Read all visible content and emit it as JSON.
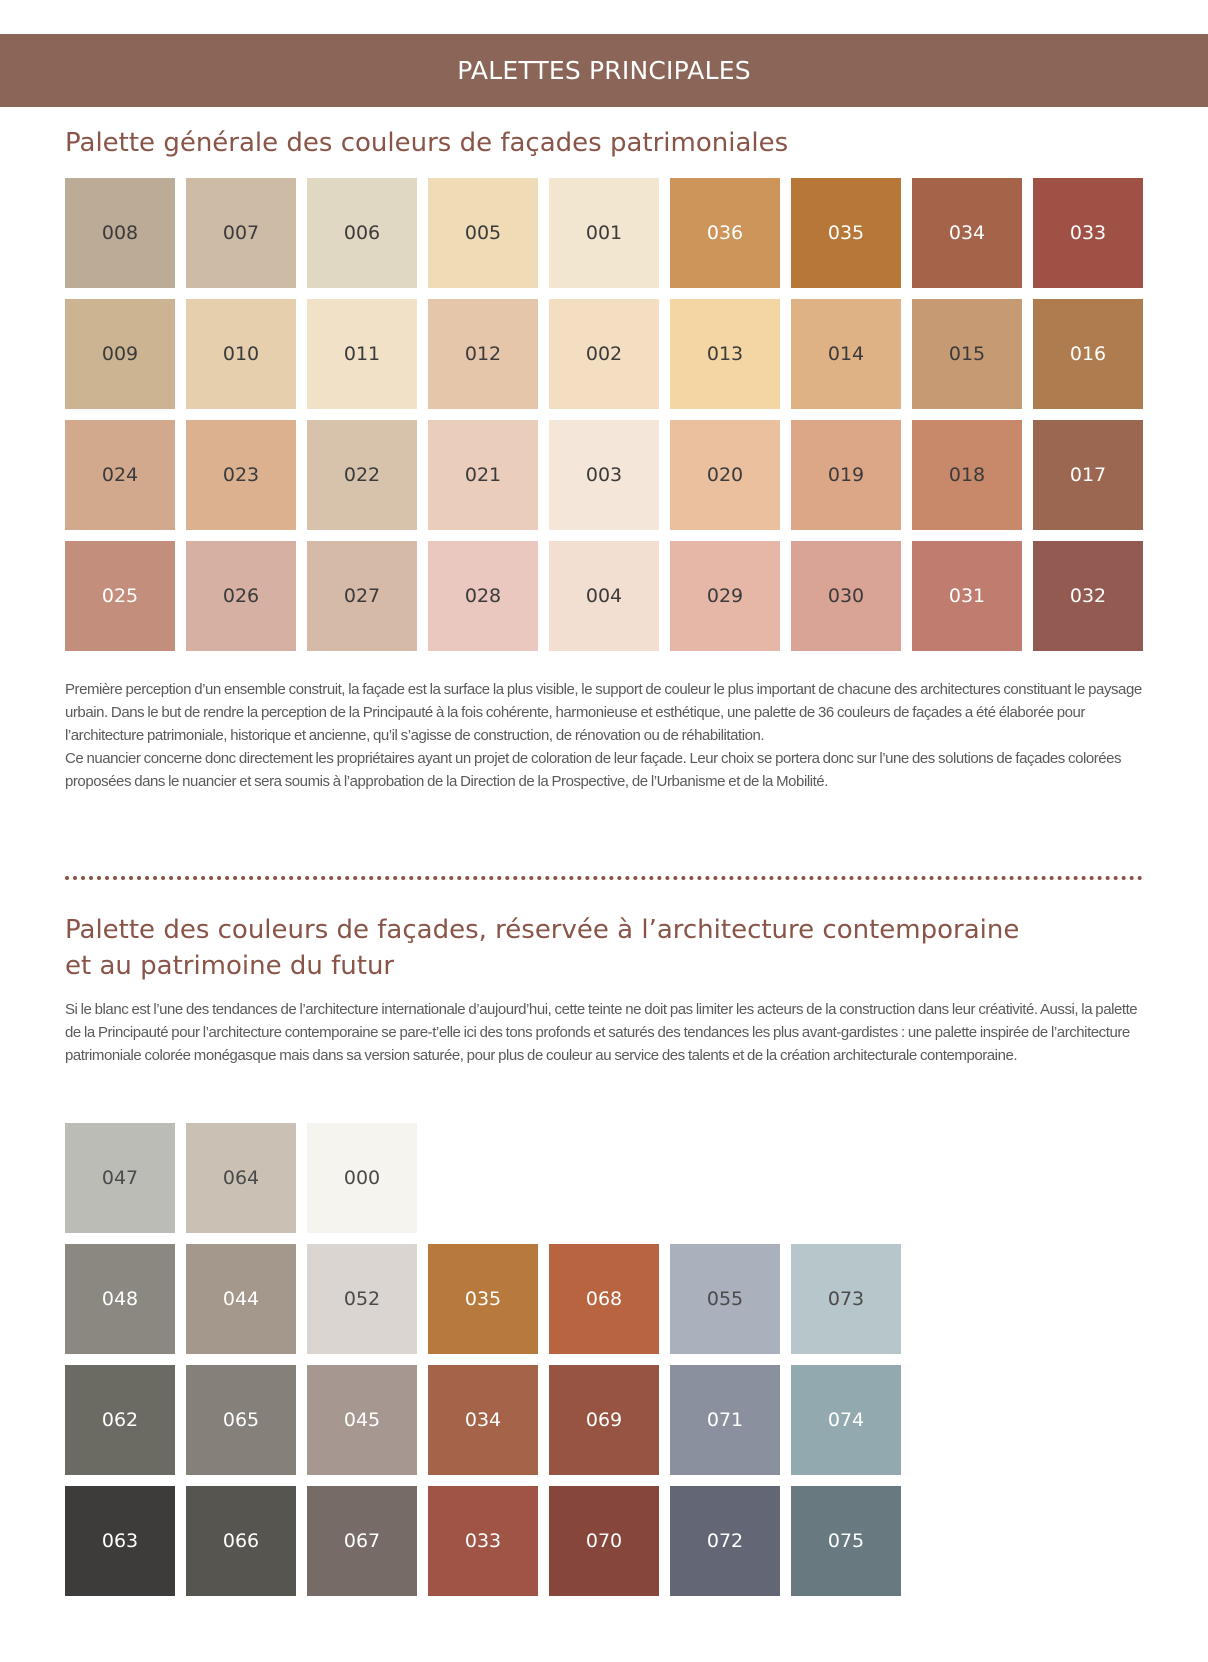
{
  "banner": {
    "title": "PALETTES PRINCIPALES"
  },
  "section1": {
    "title": "Palette générale des couleurs de façades patrimoniales",
    "rows": [
      [
        {
          "code": "008",
          "color": "#bcab96",
          "text_color": "#3b3b3b"
        },
        {
          "code": "007",
          "color": "#cdbba6",
          "text_color": "#3b3b3b"
        },
        {
          "code": "006",
          "color": "#e1d8c3",
          "text_color": "#3b3b3b"
        },
        {
          "code": "005",
          "color": "#efdbb5",
          "text_color": "#3b3b3b"
        },
        {
          "code": "001",
          "color": "#f3e6d1",
          "text_color": "#3b3b3b"
        },
        {
          "code": "036",
          "color": "#cd955a",
          "text_color": "#ffffff"
        },
        {
          "code": "035",
          "color": "#b67739",
          "text_color": "#ffffff"
        },
        {
          "code": "034",
          "color": "#a5634a",
          "text_color": "#ffffff"
        },
        {
          "code": "033",
          "color": "#9f5145",
          "text_color": "#ffffff"
        }
      ],
      [
        {
          "code": "009",
          "color": "#ccb493",
          "text_color": "#3b3b3b"
        },
        {
          "code": "010",
          "color": "#e5cfad",
          "text_color": "#3b3b3b"
        },
        {
          "code": "011",
          "color": "#f1e1c6",
          "text_color": "#3b3b3b"
        },
        {
          "code": "012",
          "color": "#e5c6aa",
          "text_color": "#3b3b3b"
        },
        {
          "code": "002",
          "color": "#f3dec1",
          "text_color": "#3b3b3b"
        },
        {
          "code": "013",
          "color": "#f4d6a4",
          "text_color": "#3b3b3b"
        },
        {
          "code": "014",
          "color": "#dfb286",
          "text_color": "#3b3b3b"
        },
        {
          "code": "015",
          "color": "#c69a72",
          "text_color": "#3b3b3b"
        },
        {
          "code": "016",
          "color": "#ae7c4f",
          "text_color": "#ffffff"
        }
      ],
      [
        {
          "code": "024",
          "color": "#d3a98e",
          "text_color": "#3b3b3b"
        },
        {
          "code": "023",
          "color": "#dbb18f",
          "text_color": "#3b3b3b"
        },
        {
          "code": "022",
          "color": "#d7c3ab",
          "text_color": "#3b3b3b"
        },
        {
          "code": "021",
          "color": "#ebcdbc",
          "text_color": "#3b3b3b"
        },
        {
          "code": "003",
          "color": "#f4e6d8",
          "text_color": "#3b3b3b"
        },
        {
          "code": "020",
          "color": "#eac09f",
          "text_color": "#3b3b3b"
        },
        {
          "code": "019",
          "color": "#dca787",
          "text_color": "#3b3b3b"
        },
        {
          "code": "018",
          "color": "#c7896a",
          "text_color": "#3b3b3b"
        },
        {
          "code": "017",
          "color": "#9c6751",
          "text_color": "#ffffff"
        }
      ],
      [
        {
          "code": "025",
          "color": "#c38e7c",
          "text_color": "#ffffff"
        },
        {
          "code": "026",
          "color": "#d6b0a3",
          "text_color": "#3b3b3b"
        },
        {
          "code": "027",
          "color": "#d5baa8",
          "text_color": "#3b3b3b"
        },
        {
          "code": "028",
          "color": "#eac8c0",
          "text_color": "#3b3b3b"
        },
        {
          "code": "004",
          "color": "#f3dfd1",
          "text_color": "#3b3b3b"
        },
        {
          "code": "029",
          "color": "#e6b7a7",
          "text_color": "#3b3b3b"
        },
        {
          "code": "030",
          "color": "#d9a395",
          "text_color": "#3b3b3b"
        },
        {
          "code": "031",
          "color": "#bf7c6f",
          "text_color": "#ffffff"
        },
        {
          "code": "032",
          "color": "#925a50",
          "text_color": "#ffffff"
        }
      ]
    ],
    "paragraph": "Première perception d’un ensemble construit, la façade est la surface la plus visible, le support de couleur le plus important de chacune des architectures constituant le paysage urbain. Dans le but de rendre la perception de la Principauté à la fois cohérente, harmonieuse et esthétique, une palette de 36 couleurs de façades a été élaborée pour l’architecture patrimoniale, historique et ancienne, qu’il s’agisse de construction, de rénovation ou de réhabilitation.\nCe nuancier concerne donc directement les propriétaires ayant un projet de coloration de leur façade. Leur choix se portera donc sur l’une des solutions de façades colorées proposées dans le nuancier et sera soumis à l’approbation de la Direction de la Prospective, de l’Urbanisme et de la Mobilité."
  },
  "section2": {
    "title_line1": "Palette des couleurs de façades, réservée à l’architecture contemporaine",
    "title_line2": "et au patrimoine du futur",
    "paragraph": "Si le blanc est l’une des tendances de l’architecture internationale d’aujourd’hui, cette teinte ne doit pas limiter les acteurs de la construction dans leur créativité. Aussi, la palette de la Principauté pour l’architecture contemporaine se pare-t’elle ici des tons profonds et saturés des tendances les plus avant-gardistes : une palette inspirée de l’architecture patrimoniale colorée monégasque mais dans sa version saturée, pour plus de couleur au service des talents et de la création architecturale contemporaine.",
    "rows": [
      [
        {
          "code": "047",
          "color": "#bcbcb7",
          "text_color": "#4a4a4a"
        },
        {
          "code": "064",
          "color": "#cac1b4",
          "text_color": "#4a4a4a"
        },
        {
          "code": "000",
          "color": "#f6f4ee",
          "text_color": "#4a4a4a"
        }
      ],
      [
        {
          "code": "048",
          "color": "#8a8880",
          "text_color": "#ffffff"
        },
        {
          "code": "044",
          "color": "#a4978b",
          "text_color": "#ffffff"
        },
        {
          "code": "052",
          "color": "#dad5d1",
          "text_color": "#4a4a4a"
        },
        {
          "code": "035",
          "color": "#b77a3c",
          "text_color": "#ffffff"
        },
        {
          "code": "068",
          "color": "#b86441",
          "text_color": "#ffffff"
        },
        {
          "code": "055",
          "color": "#aab0bc",
          "text_color": "#4a4a4a"
        },
        {
          "code": "073",
          "color": "#b6c6ca",
          "text_color": "#4a4a4a"
        }
      ],
      [
        {
          "code": "062",
          "color": "#6b6a63",
          "text_color": "#ffffff"
        },
        {
          "code": "065",
          "color": "#85807a",
          "text_color": "#ffffff"
        },
        {
          "code": "045",
          "color": "#a69891",
          "text_color": "#ffffff"
        },
        {
          "code": "034",
          "color": "#a5644a",
          "text_color": "#ffffff"
        },
        {
          "code": "069",
          "color": "#975442",
          "text_color": "#ffffff"
        },
        {
          "code": "071",
          "color": "#8a909d",
          "text_color": "#ffffff"
        },
        {
          "code": "074",
          "color": "#92aaaf",
          "text_color": "#ffffff"
        }
      ],
      [
        {
          "code": "063",
          "color": "#3d3c3a",
          "text_color": "#ffffff"
        },
        {
          "code": "066",
          "color": "#575550",
          "text_color": "#ffffff"
        },
        {
          "code": "067",
          "color": "#766b67",
          "text_color": "#ffffff"
        },
        {
          "code": "033",
          "color": "#a05446",
          "text_color": "#ffffff"
        },
        {
          "code": "070",
          "color": "#87463b",
          "text_color": "#ffffff"
        },
        {
          "code": "072",
          "color": "#636775",
          "text_color": "#ffffff"
        },
        {
          "code": "075",
          "color": "#687a80",
          "text_color": "#ffffff"
        }
      ]
    ]
  }
}
